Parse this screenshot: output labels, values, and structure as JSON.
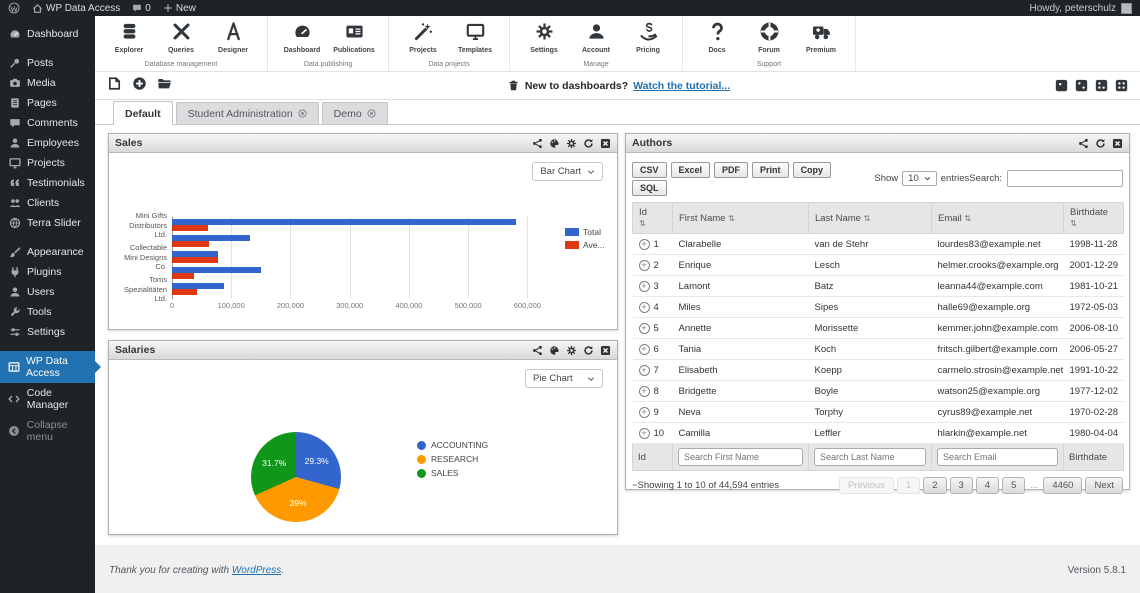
{
  "admin_bar": {
    "site_name": "WP Data Access",
    "comment_count": "0",
    "new_label": "New",
    "howdy": "Howdy, peterschulz"
  },
  "sidebar": {
    "items": [
      {
        "label": "Dashboard",
        "icon": "gauge-icon"
      },
      {
        "label": "Posts",
        "icon": "pushpin-icon",
        "gap": true
      },
      {
        "label": "Media",
        "icon": "camera-icon"
      },
      {
        "label": "Pages",
        "icon": "pages-icon"
      },
      {
        "label": "Comments",
        "icon": "comment-icon"
      },
      {
        "label": "Employees",
        "icon": "person-icon"
      },
      {
        "label": "Projects",
        "icon": "monitor-icon"
      },
      {
        "label": "Testimonials",
        "icon": "quote-icon"
      },
      {
        "label": "Clients",
        "icon": "groups-icon"
      },
      {
        "label": "Terra Slider",
        "icon": "globe-icon"
      },
      {
        "label": "Appearance",
        "icon": "brush-icon",
        "gap": true
      },
      {
        "label": "Plugins",
        "icon": "plugin-icon"
      },
      {
        "label": "Users",
        "icon": "person-icon"
      },
      {
        "label": "Tools",
        "icon": "wrench-icon"
      },
      {
        "label": "Settings",
        "icon": "sliders-icon"
      },
      {
        "label": "WP Data Access",
        "icon": "table-icon",
        "active": true,
        "gap": true
      },
      {
        "label": "Code Manager",
        "icon": "code-icon"
      },
      {
        "label": "Collapse menu",
        "icon": "collapse-icon",
        "dim": true
      }
    ]
  },
  "ribbon": {
    "groups": [
      {
        "label": "Database management",
        "items": [
          {
            "label": "Explorer",
            "icon": "database-icon"
          },
          {
            "label": "Queries",
            "icon": "tools-icon"
          },
          {
            "label": "Designer",
            "icon": "compass-icon"
          }
        ]
      },
      {
        "label": "Data publishing",
        "items": [
          {
            "label": "Dashboard",
            "icon": "gauge-icon"
          },
          {
            "label": "Publications",
            "icon": "idcard-icon"
          }
        ]
      },
      {
        "label": "Data projects",
        "items": [
          {
            "label": "Projects",
            "icon": "wand-icon"
          },
          {
            "label": "Templates",
            "icon": "monitor-icon"
          }
        ]
      },
      {
        "label": "Manage",
        "items": [
          {
            "label": "Settings",
            "icon": "gear-icon"
          },
          {
            "label": "Account",
            "icon": "person-icon"
          },
          {
            "label": "Pricing",
            "icon": "pricing-icon"
          }
        ]
      },
      {
        "label": "Support",
        "items": [
          {
            "label": "Docs",
            "icon": "question-icon"
          },
          {
            "label": "Forum",
            "icon": "lifering-icon"
          },
          {
            "label": "Premium",
            "icon": "truck-icon"
          }
        ]
      }
    ]
  },
  "dashboard_toolbar": {
    "left_icons": [
      "new-dashboard-icon",
      "add-panel-icon",
      "open-dashboard-icon"
    ],
    "hint_icon": "trash-icon",
    "hint_text": "New to dashboards?",
    "hint_link": "Watch the tutorial...",
    "layout_icons": [
      "layout-1-column-icon",
      "layout-2-columns-icon",
      "layout-3-columns-icon",
      "layout-4-panels-icon"
    ]
  },
  "tabs": [
    {
      "label": "Default",
      "active": true,
      "closable": false
    },
    {
      "label": "Student Administration",
      "active": false,
      "closable": true
    },
    {
      "label": "Demo",
      "active": false,
      "closable": true
    }
  ],
  "panels": {
    "sales": {
      "title": "Sales",
      "header_icons": [
        "share-icon",
        "palette-icon",
        "gear-icon",
        "refresh-icon",
        "close-icon"
      ],
      "chart_type_selected": "Bar Chart"
    },
    "salaries": {
      "title": "Salaries",
      "header_icons": [
        "share-icon",
        "palette-icon",
        "gear-icon",
        "refresh-icon",
        "close-icon"
      ],
      "chart_type_selected": "Pie Chart"
    },
    "authors": {
      "title": "Authors",
      "header_icons": [
        "share-icon",
        "refresh-icon",
        "close-icon"
      ],
      "export_buttons": [
        "CSV",
        "Excel",
        "PDF",
        "Print",
        "Copy",
        "SQL"
      ],
      "show_label": "Show",
      "page_size": "10",
      "entries_label": "entries",
      "search_label": "Search:",
      "search_value": "",
      "columns": [
        "Id",
        "First Name",
        "Last Name",
        "Email",
        "Birthdate"
      ],
      "rows": [
        {
          "id": "1",
          "first": "Clarabelle",
          "last": "van de Stehr",
          "email": "lourdes83@example.net",
          "birthdate": "1998-11-28"
        },
        {
          "id": "2",
          "first": "Enrique",
          "last": "Lesch",
          "email": "helmer.crooks@example.org",
          "birthdate": "2001-12-29"
        },
        {
          "id": "3",
          "first": "Lamont",
          "last": "Batz",
          "email": "leanna44@example.com",
          "birthdate": "1981-10-21"
        },
        {
          "id": "4",
          "first": "Miles",
          "last": "Sipes",
          "email": "halle69@example.org",
          "birthdate": "1972-05-03"
        },
        {
          "id": "5",
          "first": "Annette",
          "last": "Morissette",
          "email": "kemmer.john@example.com",
          "birthdate": "2006-08-10"
        },
        {
          "id": "6",
          "first": "Tania",
          "last": "Koch",
          "email": "fritsch.gilbert@example.com",
          "birthdate": "2006-05-27"
        },
        {
          "id": "7",
          "first": "Elisabeth",
          "last": "Koepp",
          "email": "carmelo.strosin@example.net",
          "birthdate": "1991-10-22"
        },
        {
          "id": "8",
          "first": "Bridgette",
          "last": "Boyle",
          "email": "watson25@example.org",
          "birthdate": "1977-12-02"
        },
        {
          "id": "9",
          "first": "Neva",
          "last": "Torphy",
          "email": "cyrus89@example.net",
          "birthdate": "1970-02-28"
        },
        {
          "id": "10",
          "first": "Camilla",
          "last": "Leffler",
          "email": "hlarkin@example.net",
          "birthdate": "1980-04-04"
        }
      ],
      "filter_row": {
        "id_label": "Id",
        "first_placeholder": "Search First Name",
        "last_placeholder": "Search Last Name",
        "email_placeholder": "Search Email",
        "birthdate_label": "Birthdate"
      },
      "pagination": {
        "info": "~Showing 1 to 10 of 44,594 entries",
        "buttons": [
          {
            "label": "Previous",
            "muted": true
          },
          {
            "label": "1",
            "muted": true
          },
          {
            "label": "2"
          },
          {
            "label": "3"
          },
          {
            "label": "4"
          },
          {
            "label": "5"
          },
          {
            "label": "...",
            "ellipsis": true
          },
          {
            "label": "4460"
          },
          {
            "label": "Next"
          }
        ]
      }
    }
  },
  "chart_data": [
    {
      "type": "bar",
      "orientation": "horizontal",
      "title": "Sales",
      "series": [
        {
          "name": "Total",
          "color": "#3366cc"
        },
        {
          "name": "Ave...",
          "color": "#dc3912"
        }
      ],
      "groups": [
        {
          "label_lines": [
            "Mini Gifts",
            "Distributors",
            "Ltd."
          ],
          "total": 580000,
          "average": 61000
        },
        {
          "label_lines": [],
          "total": 131000,
          "average": 63000
        },
        {
          "label_lines": [
            "Collectable",
            "Mini Designs",
            "Co."
          ],
          "total": 77000,
          "average": 78000
        },
        {
          "label_lines": [],
          "total": 151000,
          "average": 37000
        },
        {
          "label_lines": [
            "Toms",
            "Spezialitäten",
            "Ltd."
          ],
          "total": 87000,
          "average": 43000
        }
      ],
      "x_ticks": [
        {
          "value": 0,
          "label": "0"
        },
        {
          "value": 100000,
          "label": "100,000"
        },
        {
          "value": 200000,
          "label": "200,000"
        },
        {
          "value": 300000,
          "label": "300,000"
        },
        {
          "value": 400000,
          "label": "400,000"
        },
        {
          "value": 500000,
          "label": "500,000"
        },
        {
          "value": 600000,
          "label": "600,000"
        }
      ],
      "xlim": [
        0,
        650000
      ],
      "grid": true,
      "legend_position": "right"
    },
    {
      "type": "pie",
      "title": "Salaries",
      "slices": [
        {
          "label": "ACCOUNTING",
          "value": 29.3,
          "display": "29.3%",
          "color": "#3366cc"
        },
        {
          "label": "RESEARCH",
          "value": 39.0,
          "display": "39%",
          "color": "#ff9900"
        },
        {
          "label": "SALES",
          "value": 31.7,
          "display": "31.7%",
          "color": "#109618"
        }
      ],
      "legend_position": "right"
    }
  ],
  "footer": {
    "thanks_prefix": "Thank you for creating with ",
    "wordpress_link": "WordPress",
    "thanks_suffix": ".",
    "version": "Version 5.8.1"
  }
}
